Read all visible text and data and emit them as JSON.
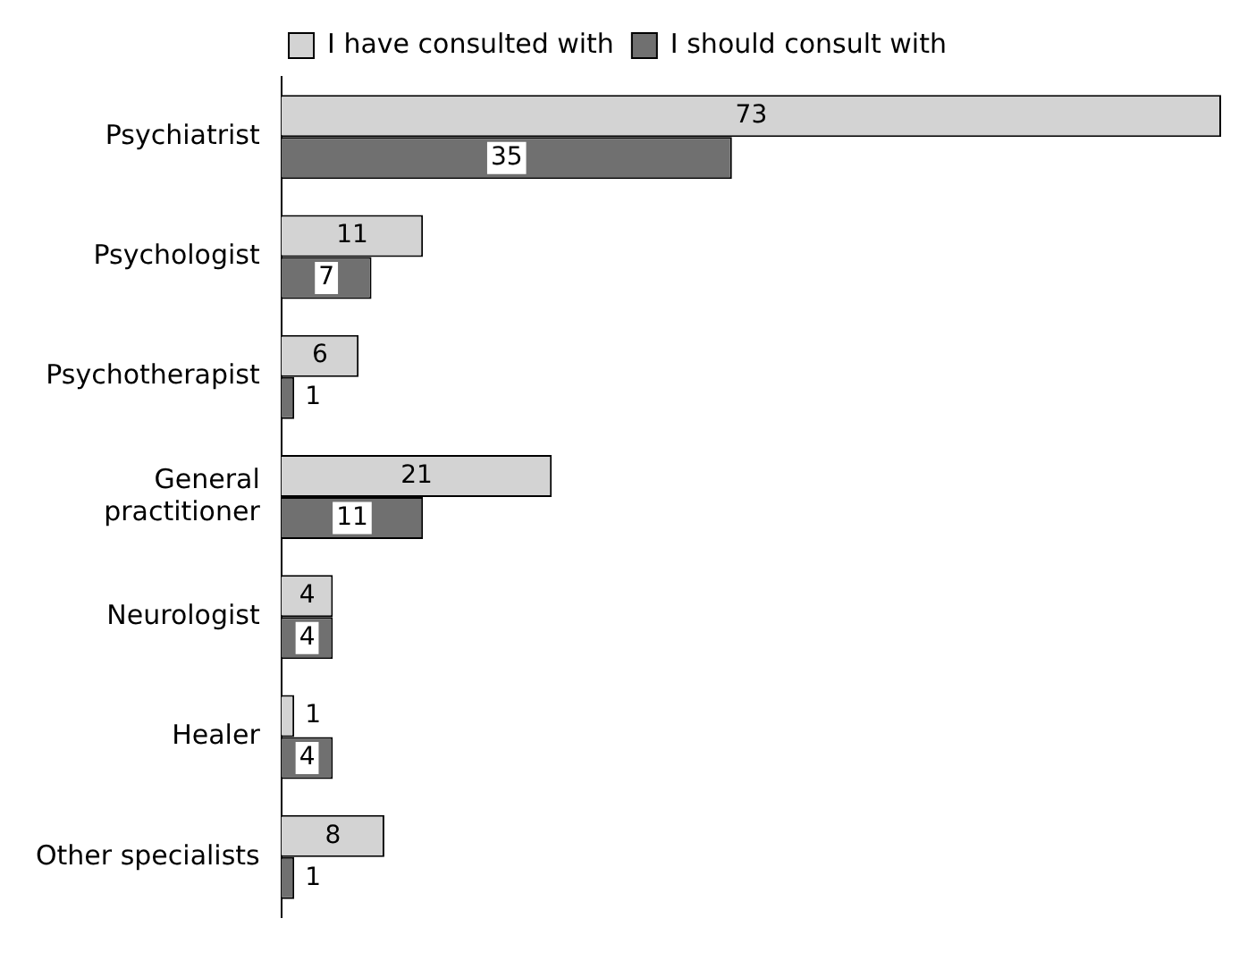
{
  "chart_data": {
    "type": "bar",
    "orientation": "horizontal",
    "categories": [
      "Psychiatrist",
      "Psychologist",
      "Psychotherapist",
      "General practitioner",
      "Neurologist",
      "Healer",
      "Other specialists"
    ],
    "series": [
      {
        "name": "I have consulted with",
        "color": "#d3d3d3",
        "values": [
          73,
          11,
          6,
          21,
          4,
          1,
          8
        ]
      },
      {
        "name": "I should consult with",
        "color": "#707070",
        "values": [
          35,
          7,
          1,
          11,
          4,
          4,
          1
        ]
      }
    ],
    "xlim": [
      0,
      73
    ],
    "data_labels": true,
    "legend": "top",
    "tick_labels": "y"
  }
}
